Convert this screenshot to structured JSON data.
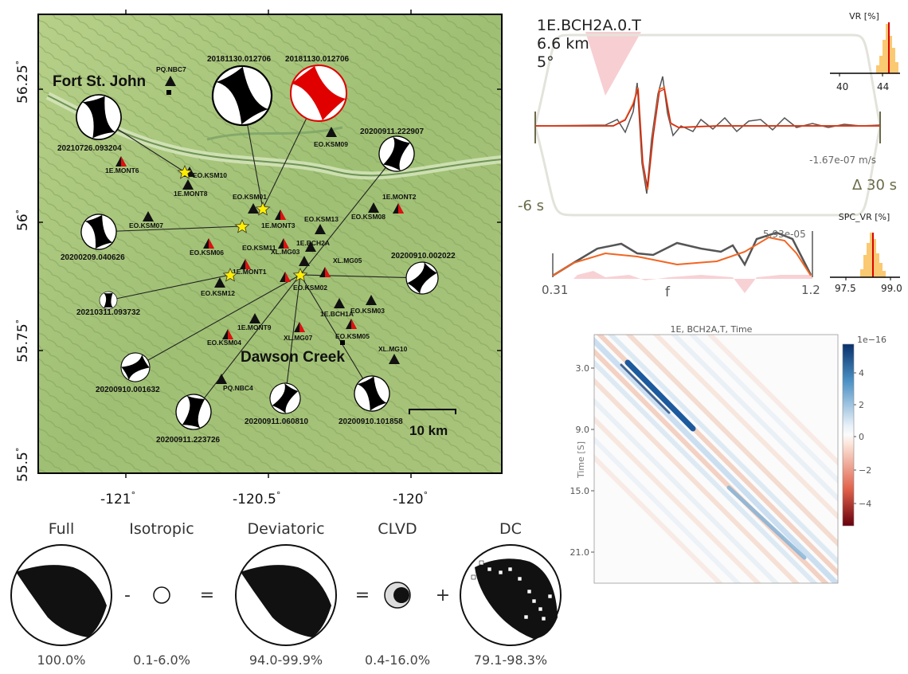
{
  "map": {
    "lat_ticks": [
      "55.5",
      "55.75",
      "56",
      "56.25"
    ],
    "lon_ticks": [
      "-121",
      "-120.5",
      "-120"
    ],
    "degree": "°",
    "cities": [
      "Fort St. John",
      "Dawson Creek"
    ],
    "scale_label": "10 km",
    "station_labels": [
      "PQ.NBC7",
      "EO.KSM09",
      "1E.MONT6",
      "EO.KSM10",
      "1E.MONT8",
      "EO.KSM01",
      "1E.MONT2",
      "EO.KSM13",
      "EO.KSM08",
      "EO.KSM07",
      "1E.MONT3",
      "EO.KSM06",
      "EO.KSM11",
      "XL.MG03",
      "1E.BCH2A",
      "XL.MG05",
      "1E.MONT1",
      "EO.KSM02",
      "EO.KSM12",
      "1E.BCH1A",
      "EO.KSM03",
      "1E.MONT9",
      "EO.KSM04",
      "XL.MG07",
      "EO.KSM05",
      "XL.MG10",
      "PQ.NBC4"
    ],
    "event_labels": [
      "20181130.012706",
      "20181130.012706",
      "20210726.093204",
      "20200911.222907",
      "20200209.040626",
      "20200910.002022",
      "20210311.093732",
      "20200910.001632",
      "20200911.223726",
      "20200911.060810",
      "20200910.101858"
    ]
  },
  "waveform": {
    "station": "1E.BCH2A.0.T",
    "distance": "6.6 km",
    "azimuth": "5°",
    "amp_label": "-1.67e-07 m/s",
    "start_label": "-6 s",
    "window_label": "Δ 30 s"
  },
  "spectrum": {
    "amp_label": "5.93e-05",
    "fmin": "0.31",
    "fmax": "1.2",
    "xlabel": "f"
  },
  "vr_hist": {
    "title": "VR [%]",
    "ticks": [
      "40",
      "44"
    ]
  },
  "spc_hist": {
    "title": "SPC_VR [%]",
    "ticks": [
      "97.5",
      "99.0"
    ]
  },
  "heatmap": {
    "title": "1E, BCH2A,T, Time",
    "ylabel": "Time [S]",
    "yticks": [
      "3.0",
      "9.0",
      "15.0",
      "21.0"
    ],
    "colorbar_exp": "1e−16",
    "colorbar_ticks": [
      "4",
      "2",
      "0",
      "−2",
      "−4"
    ],
    "colors": {
      "positive": "#08306b",
      "negative": "#67000d"
    }
  },
  "decomposition": {
    "items": [
      {
        "name": "Full",
        "percent": "100.0%"
      },
      {
        "name": "Isotropic",
        "percent": "0.1-6.0%"
      },
      {
        "name": "Deviatoric",
        "percent": "94.0-99.9%"
      },
      {
        "name": "CLVD",
        "percent": "0.4-16.0%"
      },
      {
        "name": "DC",
        "percent": "79.1-98.3%"
      }
    ],
    "operators": [
      "-",
      "=",
      "=",
      "+"
    ]
  }
}
